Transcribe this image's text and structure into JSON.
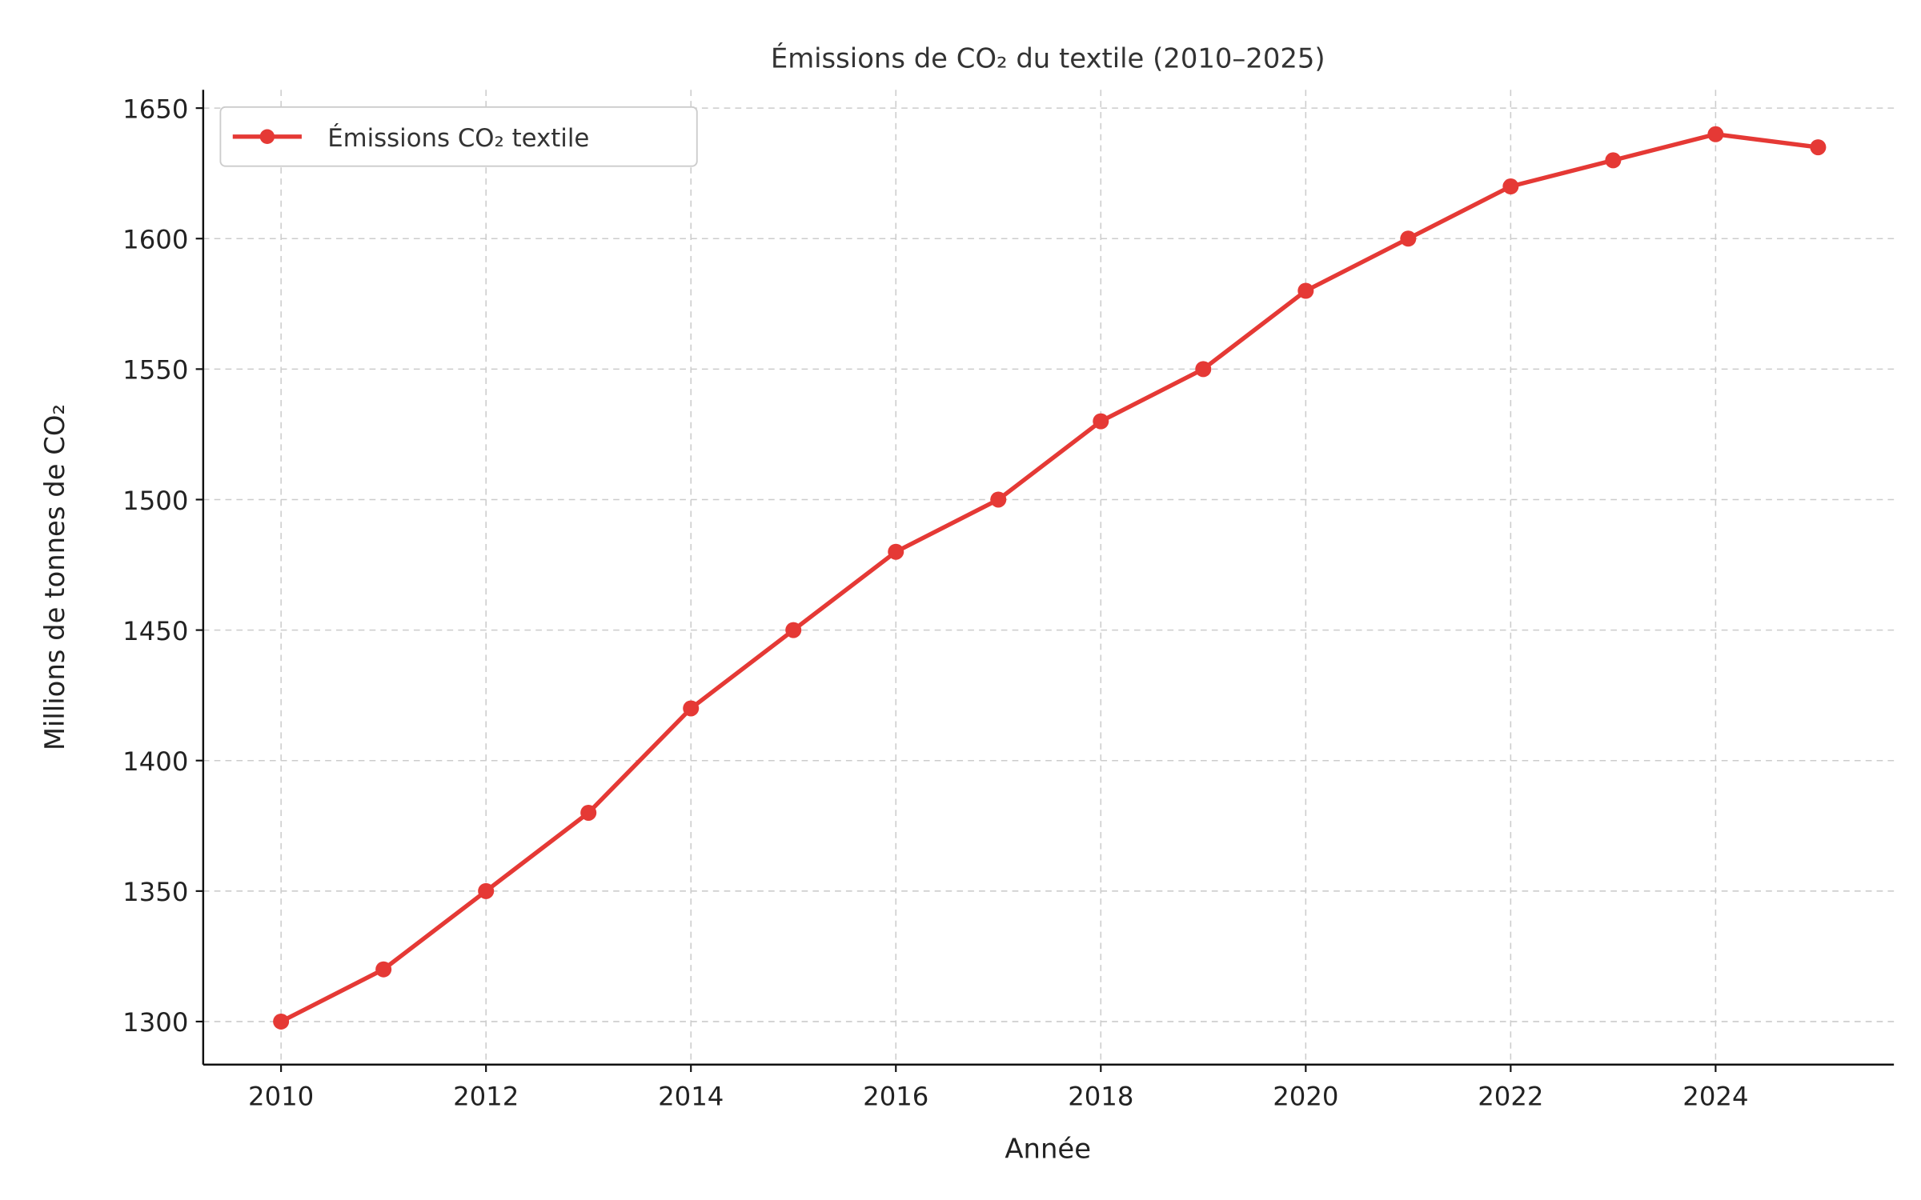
{
  "chart_data": {
    "type": "line",
    "title": "Émissions de CO₂ du textile (2010–2025)",
    "xlabel": "Année",
    "ylabel": "Millions de tonnes de CO₂",
    "x": [
      2010,
      2011,
      2012,
      2013,
      2014,
      2015,
      2016,
      2017,
      2018,
      2019,
      2020,
      2021,
      2022,
      2023,
      2024,
      2025
    ],
    "series": [
      {
        "name": "Émissions CO₂ textile",
        "color": "#e53935",
        "values": [
          1300,
          1320,
          1350,
          1380,
          1420,
          1450,
          1480,
          1500,
          1530,
          1550,
          1580,
          1600,
          1620,
          1630,
          1640,
          1635
        ]
      }
    ],
    "xticks": [
      "2010",
      "2012",
      "2014",
      "2016",
      "2018",
      "2020",
      "2022",
      "2024"
    ],
    "yticks": [
      "1300",
      "1350",
      "1400",
      "1450",
      "1500",
      "1550",
      "1600",
      "1650"
    ],
    "xlim": [
      2009.24,
      2025.74
    ],
    "ylim": [
      1283.5,
      1657
    ],
    "grid": true,
    "legend_position": "top-left"
  }
}
